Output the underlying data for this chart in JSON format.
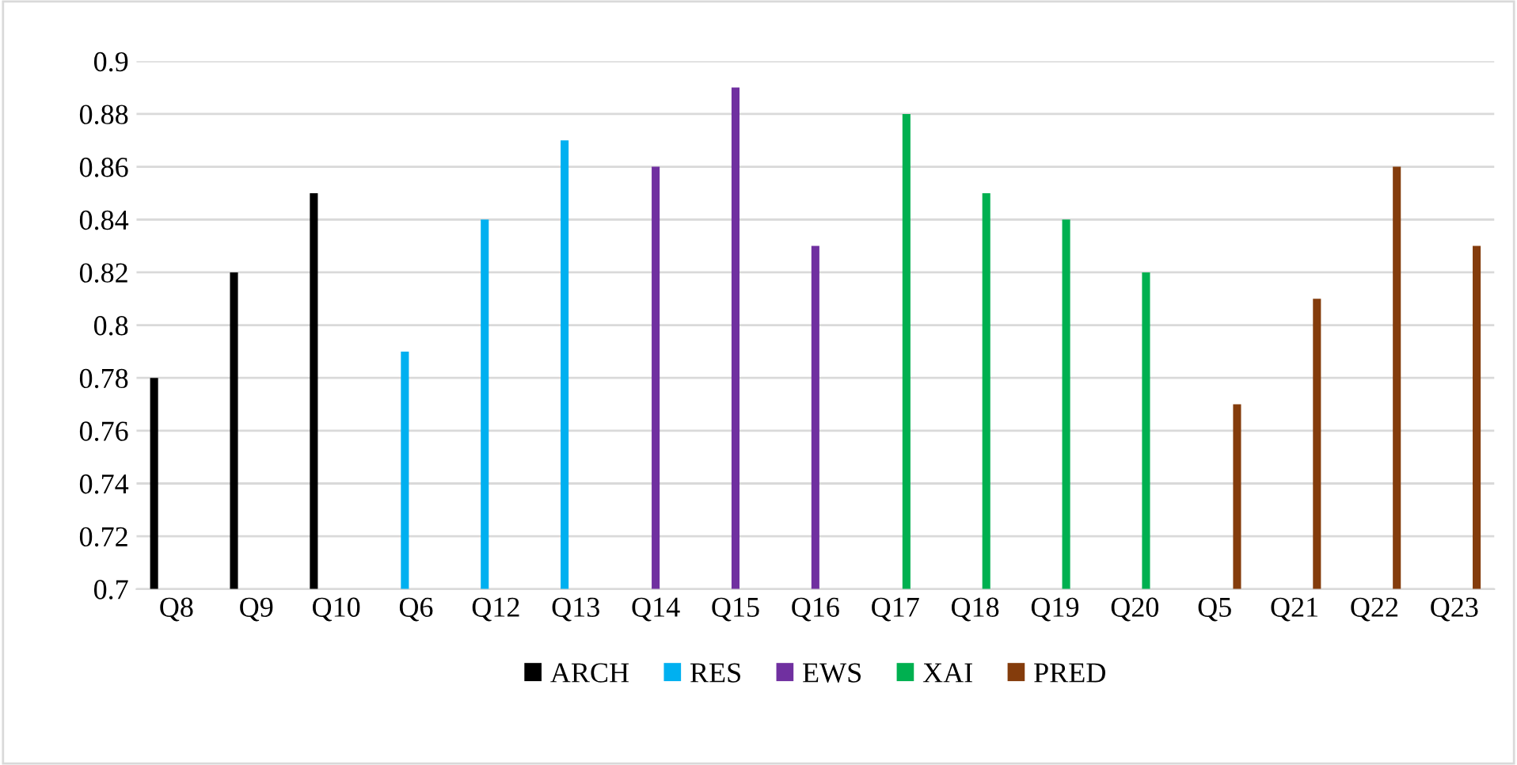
{
  "chart_data": {
    "type": "bar",
    "categories": [
      "Q8",
      "Q9",
      "Q10",
      "Q6",
      "Q12",
      "Q13",
      "Q14",
      "Q15",
      "Q16",
      "Q17",
      "Q18",
      "Q19",
      "Q20",
      "Q5",
      "Q21",
      "Q22",
      "Q23"
    ],
    "series": [
      {
        "name": "ARCH",
        "color": "#000000",
        "values": [
          0.78,
          0.82,
          0.85,
          null,
          null,
          null,
          null,
          null,
          null,
          null,
          null,
          null,
          null,
          null,
          null,
          null,
          null
        ]
      },
      {
        "name": "RES",
        "color": "#00b0f0",
        "values": [
          null,
          null,
          null,
          0.79,
          0.84,
          0.87,
          null,
          null,
          null,
          null,
          null,
          null,
          null,
          null,
          null,
          null,
          null
        ]
      },
      {
        "name": "EWS",
        "color": "#7030a0",
        "values": [
          null,
          null,
          null,
          null,
          null,
          null,
          0.86,
          0.89,
          0.83,
          null,
          null,
          null,
          null,
          null,
          null,
          null,
          null
        ]
      },
      {
        "name": "XAI",
        "color": "#00b050",
        "values": [
          null,
          null,
          null,
          null,
          null,
          null,
          null,
          null,
          null,
          0.88,
          0.85,
          0.84,
          0.82,
          null,
          null,
          null,
          null
        ]
      },
      {
        "name": "PRED",
        "color": "#843c0c",
        "values": [
          null,
          null,
          null,
          null,
          null,
          null,
          null,
          null,
          null,
          null,
          null,
          null,
          null,
          0.77,
          0.81,
          0.86,
          0.83
        ]
      }
    ],
    "ylim": [
      0.7,
      0.9
    ],
    "yticks": [
      {
        "value": 0.7,
        "label": "0.7"
      },
      0.72,
      0.74,
      0.76,
      0.78,
      {
        "value": 0.8,
        "label": "0.8"
      },
      0.82,
      0.84,
      0.86,
      0.88,
      {
        "value": 0.9,
        "label": "0.9"
      }
    ],
    "grid": "y",
    "legend": "bottom"
  }
}
